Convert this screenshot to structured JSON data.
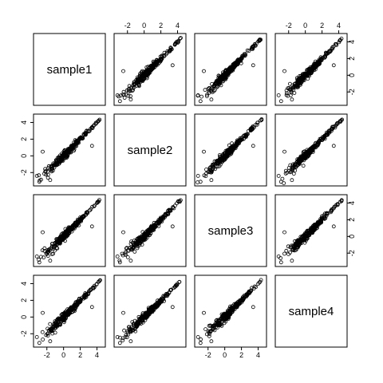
{
  "chart_data": {
    "type": "scatter",
    "layout": "pairs-matrix",
    "variables": [
      "sample1",
      "sample2",
      "sample3",
      "sample4"
    ],
    "axis_range": [
      -3.6,
      5.0
    ],
    "ticks": [
      -2,
      0,
      2,
      4
    ],
    "tick_labels": [
      "-2",
      "0",
      "2",
      "4"
    ],
    "grid": false,
    "marker": "open-circle",
    "note": "Each off-diagonal panel plots one sample against another; points form a dense positively correlated cloud running from about (-3,-3) to (4.5,4.5)."
  }
}
